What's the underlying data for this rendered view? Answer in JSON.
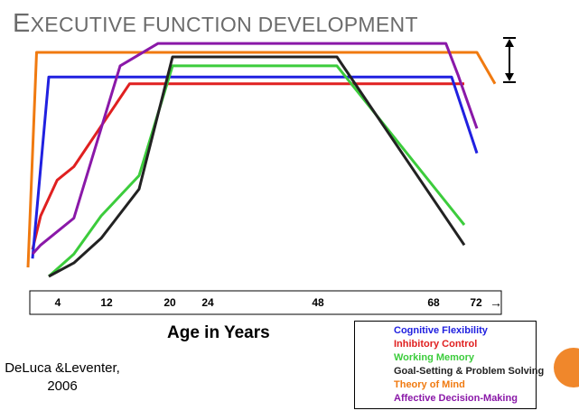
{
  "title": {
    "first": "E",
    "rest": "XECUTIVE FUNCTION DEVELOPMENT"
  },
  "citation": [
    "DeLuca &Leventer,",
    "2006"
  ],
  "chart_data": {
    "type": "line",
    "title": "Executive function development",
    "xlabel": "Age in Years",
    "ylabel": "",
    "x_ticks": [
      "4",
      "12",
      "20",
      "24",
      "48",
      "68",
      "72"
    ],
    "x_arrow": "→",
    "legend_position": "bottom-right",
    "series": [
      {
        "name": "Cognitive Flexibility",
        "color": "#2020e0",
        "points": [
          [
            0,
            8
          ],
          [
            4,
            89
          ],
          [
            12,
            89
          ],
          [
            20,
            89
          ],
          [
            48,
            89
          ],
          [
            68,
            89
          ],
          [
            72,
            55
          ]
        ]
      },
      {
        "name": "Inhibitory Control",
        "color": "#e02020",
        "points": [
          [
            0,
            12
          ],
          [
            2,
            27
          ],
          [
            6,
            43
          ],
          [
            10,
            49
          ],
          [
            17,
            86
          ],
          [
            20,
            86
          ],
          [
            48,
            86
          ],
          [
            68,
            86
          ],
          [
            70,
            86
          ]
        ]
      },
      {
        "name": "Working Memory",
        "color": "#3ccc3c",
        "points": [
          [
            4,
            0
          ],
          [
            10,
            10
          ],
          [
            14,
            27
          ],
          [
            18,
            45
          ],
          [
            22,
            94
          ],
          [
            48,
            94
          ],
          [
            70,
            23
          ]
        ]
      },
      {
        "name": "Goal-Setting & Problem Solving",
        "color": "#222222",
        "points": [
          [
            4,
            0
          ],
          [
            10,
            6
          ],
          [
            14,
            17
          ],
          [
            18,
            39
          ],
          [
            22,
            98
          ],
          [
            48,
            98
          ],
          [
            70,
            14
          ]
        ]
      },
      {
        "name": "Theory of Mind",
        "color": "#f07a10",
        "points": [
          [
            -1,
            4
          ],
          [
            1,
            100
          ],
          [
            4,
            100
          ],
          [
            48,
            100
          ],
          [
            68,
            100
          ],
          [
            72,
            100
          ],
          [
            74,
            86
          ]
        ]
      },
      {
        "name": "Affective Decision-Making",
        "color": "#8a18a8",
        "points": [
          [
            0,
            10
          ],
          [
            2,
            14
          ],
          [
            10,
            26
          ],
          [
            16,
            94
          ],
          [
            20,
            104
          ],
          [
            48,
            104
          ],
          [
            67,
            104
          ],
          [
            69,
            90
          ],
          [
            72,
            66
          ]
        ]
      }
    ]
  }
}
